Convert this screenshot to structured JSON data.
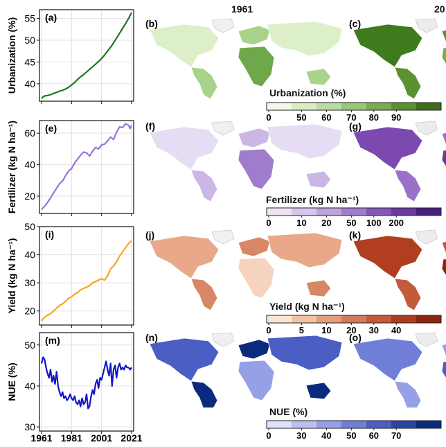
{
  "figure": {
    "col_titles": [
      "1961",
      "20"
    ]
  },
  "colorbars": [
    {
      "id": "urb",
      "title": "Urbanization (%)",
      "ticks": [
        "0",
        "50",
        "60",
        "70",
        "80",
        "90"
      ],
      "colors": [
        "#f2f9ea",
        "#d8edc4",
        "#bcdca1",
        "#98c777",
        "#77ad4f",
        "#5a9232",
        "#3e6e1a"
      ]
    },
    {
      "id": "fert",
      "title": "Fertilizer (kg N ha⁻¹)",
      "ticks": [
        "0",
        "10",
        "20",
        "50",
        "100",
        "200"
      ],
      "colors": [
        "#ece4f5",
        "#d7c6ec",
        "#bea3de",
        "#a07dcc",
        "#8557b8",
        "#6a3aa0",
        "#4a1f7e"
      ]
    },
    {
      "id": "yield",
      "title": "Yield (kg N ha⁻¹)",
      "ticks": [
        "0",
        "5",
        "10",
        "20",
        "30",
        "40"
      ],
      "colors": [
        "#fbe4d2",
        "#f2c2a5",
        "#e39d7d",
        "#d27a5b",
        "#c35a3c",
        "#ad3c23",
        "#8c2410"
      ]
    },
    {
      "id": "nue",
      "title": "NUE (%)",
      "ticks": [
        "0",
        "30",
        "40",
        "50",
        "60",
        "70"
      ],
      "colors": [
        "#dfe2fa",
        "#b9c0f0",
        "#95a0e6",
        "#6f7fd8",
        "#4b5ec4",
        "#2a45a6",
        "#0b2a7e"
      ]
    }
  ],
  "maps": {
    "urb": {
      "left_label": "(b)",
      "right_label": "(c)",
      "tone_left": [
        "#dcefc8",
        "#a9d38a",
        "#6fa84a",
        "#f0f0f0"
      ],
      "tone_right": [
        "#3f7a1d",
        "#5a9232",
        "#77ad4f",
        "#ececec"
      ]
    },
    "fert": {
      "left_label": "(f)",
      "right_label": "(g)",
      "tone_left": [
        "#e6dcf3",
        "#cbb6e6",
        "#9f7ccc",
        "#f0f0f0"
      ],
      "tone_right": [
        "#7b49b0",
        "#9a70c8",
        "#6a3aa0",
        "#ececec"
      ]
    },
    "yield": {
      "left_label": "(j)",
      "right_label": "(k)",
      "tone_left": [
        "#e8a889",
        "#d88766",
        "#f6d3bd",
        "#f0f0f0"
      ],
      "tone_right": [
        "#b23e22",
        "#c35a3c",
        "#8c2410",
        "#ececec"
      ]
    },
    "nue": {
      "left_label": "(n)",
      "right_label": "(o)",
      "tone_left": [
        "#4b5ec4",
        "#0b2a7e",
        "#95a0e6",
        "#f0f0f0"
      ],
      "tone_right": [
        "#6f7fd8",
        "#95a0e6",
        "#4b5ec4",
        "#ececec"
      ]
    }
  },
  "chart_data": [
    {
      "type": "line",
      "panel_label": "(a)",
      "ylabel": "Urbanization (%)",
      "color": "#1a7a1a",
      "xlim": [
        1961,
        2021
      ],
      "ylim": [
        36,
        57
      ],
      "yticks": [
        40,
        45,
        50,
        55
      ],
      "x": [
        1961,
        1962,
        1963,
        1965,
        1967,
        1969,
        1971,
        1973,
        1975,
        1977,
        1979,
        1981,
        1983,
        1985,
        1987,
        1989,
        1991,
        1993,
        1995,
        1997,
        1999,
        2001,
        2003,
        2005,
        2007,
        2009,
        2011,
        2013,
        2015,
        2017,
        2019,
        2020,
        2021
      ],
      "y": [
        36.6,
        37.0,
        37.2,
        37.3,
        37.5,
        37.8,
        38.0,
        38.3,
        38.5,
        38.8,
        39.2,
        39.7,
        40.3,
        41.0,
        41.6,
        42.1,
        42.7,
        43.3,
        43.9,
        44.5,
        45.1,
        45.8,
        46.6,
        47.5,
        48.4,
        49.4,
        50.5,
        51.6,
        52.7,
        53.8,
        55.0,
        55.7,
        56.3
      ]
    },
    {
      "type": "line",
      "panel_label": "(e)",
      "ylabel": "Fertilizer (kg N ha⁻¹)",
      "color": "#9b72d6",
      "xlim": [
        1961,
        2021
      ],
      "ylim": [
        9,
        68
      ],
      "yticks": [
        20,
        40,
        60
      ],
      "x": [
        1961,
        1963,
        1965,
        1967,
        1969,
        1971,
        1973,
        1975,
        1977,
        1979,
        1981,
        1983,
        1985,
        1987,
        1989,
        1991,
        1993,
        1995,
        1997,
        1999,
        2001,
        2003,
        2005,
        2007,
        2009,
        2011,
        2013,
        2015,
        2017,
        2019,
        2020,
        2021
      ],
      "y": [
        11.5,
        13.5,
        16.0,
        19.0,
        22.0,
        25.0,
        28.0,
        29.5,
        33.0,
        36.0,
        37.5,
        41.0,
        43.5,
        46.0,
        48.0,
        47.5,
        45.5,
        48.5,
        51.0,
        50.0,
        52.5,
        53.0,
        55.0,
        57.5,
        56.0,
        60.5,
        64.0,
        63.5,
        66.0,
        65.0,
        63.0,
        65.0
      ]
    },
    {
      "type": "line",
      "panel_label": "(i)",
      "ylabel": "Yield (kg N ha⁻¹)",
      "color": "#f5a623",
      "xlim": [
        1961,
        2021
      ],
      "ylim": [
        15,
        50
      ],
      "yticks": [
        20,
        30,
        40,
        50
      ],
      "x": [
        1961,
        1963,
        1965,
        1967,
        1969,
        1971,
        1973,
        1975,
        1977,
        1979,
        1981,
        1983,
        1985,
        1987,
        1989,
        1991,
        1993,
        1995,
        1997,
        1999,
        2001,
        2003,
        2005,
        2007,
        2009,
        2011,
        2013,
        2015,
        2017,
        2019,
        2021
      ],
      "y": [
        16.5,
        17.8,
        18.5,
        19.0,
        20.0,
        21.0,
        22.0,
        22.5,
        23.5,
        24.5,
        25.0,
        26.0,
        26.5,
        27.5,
        28.0,
        28.5,
        29.0,
        30.0,
        30.5,
        31.0,
        31.5,
        31.0,
        32.5,
        35.0,
        36.0,
        37.5,
        39.5,
        41.0,
        42.5,
        44.0,
        45.0
      ]
    },
    {
      "type": "line",
      "panel_label": "(m)",
      "ylabel": "NUE (%)",
      "color": "#1515c8",
      "xlim": [
        1961,
        2021
      ],
      "ylim": [
        29,
        53
      ],
      "yticks": [
        30,
        40,
        50
      ],
      "xticks": [
        1961,
        1981,
        2001,
        2021
      ],
      "x": [
        1961,
        1962,
        1963,
        1964,
        1965,
        1966,
        1967,
        1968,
        1969,
        1970,
        1971,
        1972,
        1973,
        1974,
        1975,
        1976,
        1977,
        1978,
        1979,
        1980,
        1981,
        1982,
        1983,
        1984,
        1985,
        1986,
        1987,
        1988,
        1989,
        1990,
        1991,
        1992,
        1993,
        1994,
        1995,
        1996,
        1997,
        1998,
        1999,
        2000,
        2001,
        2002,
        2003,
        2004,
        2005,
        2006,
        2007,
        2008,
        2009,
        2010,
        2011,
        2012,
        2013,
        2014,
        2015,
        2016,
        2017,
        2018,
        2019,
        2020,
        2021
      ],
      "y": [
        45.5,
        47.0,
        46.5,
        44.5,
        43.0,
        42.0,
        44.0,
        41.0,
        42.5,
        40.5,
        43.5,
        40.0,
        38.5,
        37.5,
        38.5,
        37.0,
        37.5,
        36.5,
        37.0,
        38.0,
        37.0,
        36.5,
        37.5,
        36.0,
        35.5,
        36.5,
        35.0,
        37.0,
        35.5,
        36.0,
        38.0,
        34.5,
        35.0,
        37.5,
        39.0,
        38.0,
        40.5,
        41.5,
        39.5,
        42.0,
        41.5,
        43.0,
        44.5,
        46.0,
        44.0,
        42.5,
        45.5,
        40.0,
        44.0,
        45.0,
        42.0,
        44.5,
        45.5,
        44.0,
        44.5,
        44.0,
        45.0,
        44.5,
        44.5,
        44.0,
        44.5
      ]
    }
  ]
}
